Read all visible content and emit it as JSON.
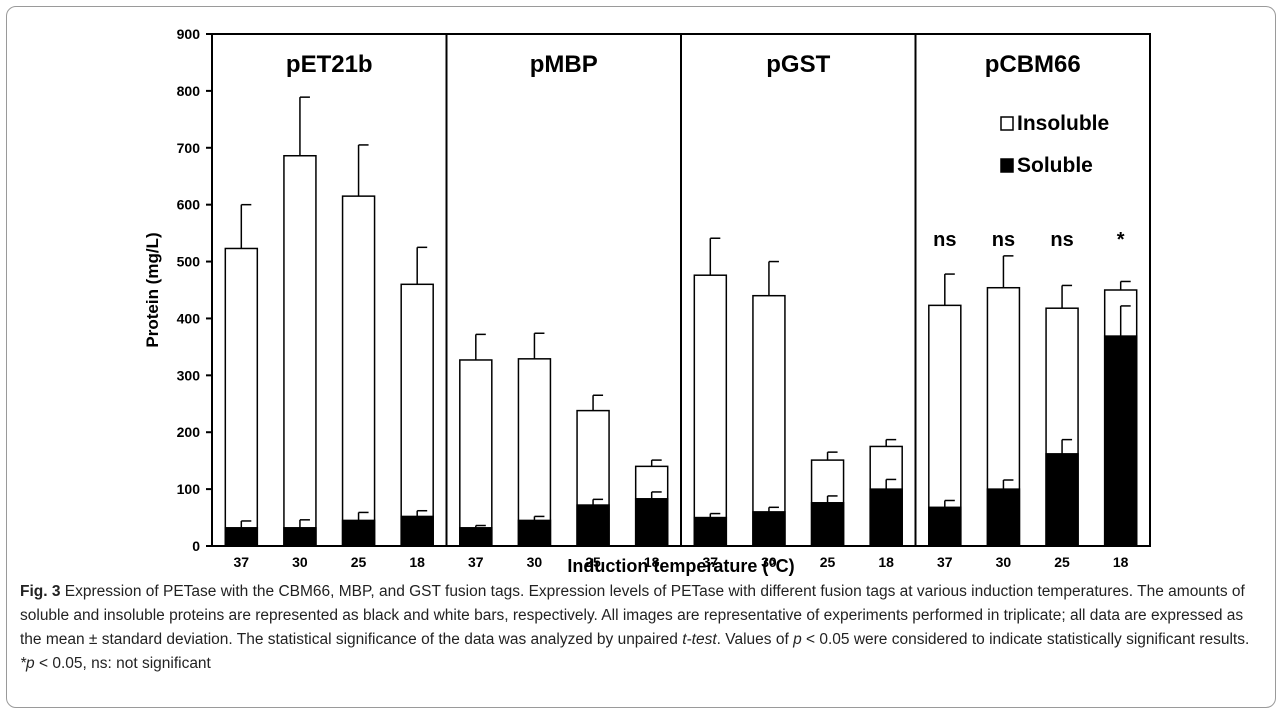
{
  "chart_data": {
    "type": "bar",
    "stacked": true,
    "ylabel": "Protein (mg/L)",
    "xlabel": "Induction temperature (°C)",
    "ylim": [
      0,
      900
    ],
    "yticks": [
      0,
      100,
      200,
      300,
      400,
      500,
      600,
      700,
      800,
      900
    ],
    "legend_position": "right, inside pCBM66 panel",
    "legend": [
      {
        "label": "Insoluble",
        "color": "#ffffff"
      },
      {
        "label": "Soluble",
        "color": "#000000"
      }
    ],
    "groups": [
      {
        "name": "pET21b",
        "categories": [
          "37",
          "30",
          "25",
          "18"
        ],
        "soluble": [
          32,
          32,
          45,
          52
        ],
        "soluble_err": [
          12,
          14,
          14,
          10
        ],
        "total": [
          523,
          686,
          615,
          460
        ],
        "total_err": [
          77,
          103,
          90,
          65
        ],
        "annotations": [
          "",
          "",
          "",
          ""
        ]
      },
      {
        "name": "pMBP",
        "categories": [
          "37",
          "30",
          "25",
          "18"
        ],
        "soluble": [
          32,
          45,
          72,
          83
        ],
        "soluble_err": [
          4,
          7,
          10,
          12
        ],
        "total": [
          327,
          329,
          238,
          140
        ],
        "total_err": [
          45,
          45,
          27,
          11
        ],
        "annotations": [
          "",
          "",
          "",
          ""
        ]
      },
      {
        "name": "pGST",
        "categories": [
          "37",
          "30",
          "25",
          "18"
        ],
        "soluble": [
          50,
          60,
          76,
          100
        ],
        "soluble_err": [
          7,
          8,
          12,
          17
        ],
        "total": [
          476,
          440,
          151,
          175
        ],
        "total_err": [
          65,
          60,
          14,
          12
        ],
        "annotations": [
          "",
          "",
          "",
          ""
        ]
      },
      {
        "name": "pCBM66",
        "categories": [
          "37",
          "30",
          "25",
          "18"
        ],
        "soluble": [
          68,
          100,
          162,
          369
        ],
        "soluble_err": [
          12,
          16,
          25,
          53
        ],
        "total": [
          423,
          454,
          418,
          450
        ],
        "total_err": [
          55,
          56,
          40,
          15
        ],
        "annotations": [
          "ns",
          "ns",
          "ns",
          "*"
        ]
      }
    ]
  },
  "caption": {
    "label": "Fig. 3",
    "seg1": "  Expression of PETase with the CBM66, MBP, and GST fusion tags. Expression levels of PETase with different fusion tags at various induction temperatures. The amounts of soluble and insoluble proteins are represented as black and white bars, respectively. All images are representative of experiments performed in triplicate; all data are expressed as the mean ± standard deviation. The statistical significance of the data was analyzed by unpaired ",
    "ttest": "t-test",
    "seg2": ". Values of ",
    "p1": "p",
    "seg3": " < 0.05 were considered to indicate statistically significant results. ",
    "p2": "*p",
    "seg4": " < 0.05, ns: not significant"
  }
}
